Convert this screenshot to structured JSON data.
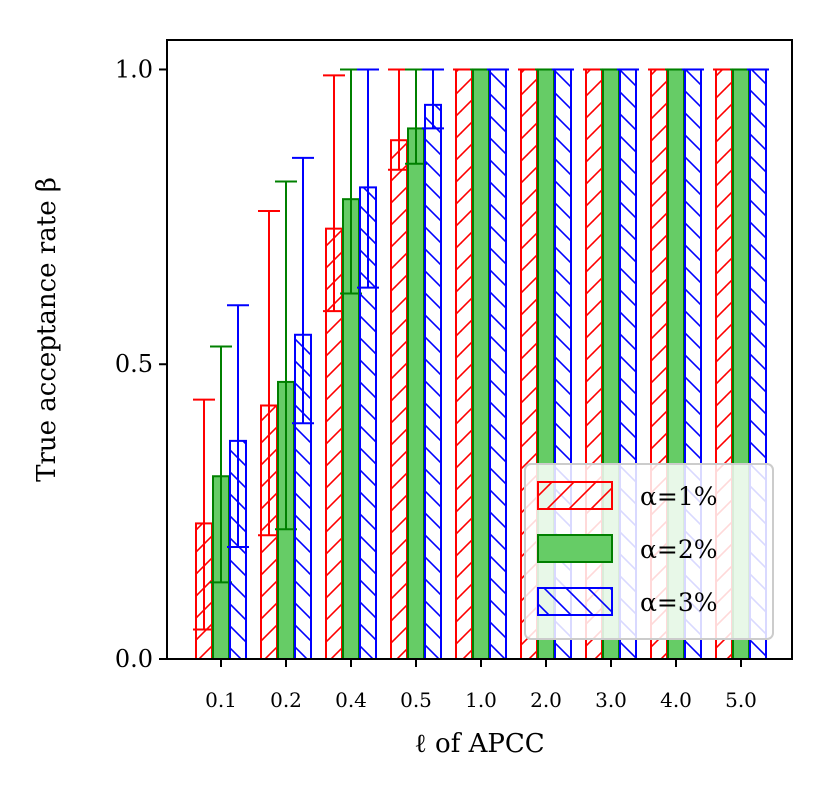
{
  "chart_data": {
    "type": "bar",
    "title": "",
    "xlabel": "ℓ of APCC",
    "ylabel": "True acceptance rate β",
    "ylim": [
      0,
      1.05
    ],
    "yticks": [
      {
        "value": 0.0,
        "label": "0.0"
      },
      {
        "value": 0.5,
        "label": "0.5"
      },
      {
        "value": 1.0,
        "label": "1.0"
      }
    ],
    "categories": [
      "0.1",
      "0.2",
      "0.4",
      "0.5",
      "1.0",
      "2.0",
      "3.0",
      "4.0",
      "5.0"
    ],
    "series": [
      {
        "name": "α=1%",
        "color": "#ff0000",
        "style": "hatch-forward",
        "values": [
          0.23,
          0.43,
          0.73,
          0.88,
          1.0,
          1.0,
          1.0,
          1.0,
          1.0
        ],
        "err_low": [
          0.05,
          0.21,
          0.59,
          0.83,
          1.0,
          1.0,
          1.0,
          1.0,
          1.0
        ],
        "err_high": [
          0.44,
          0.76,
          0.99,
          1.0,
          1.0,
          1.0,
          1.0,
          1.0,
          1.0
        ]
      },
      {
        "name": "α=2%",
        "color": "#008000",
        "fill": "#66cc66",
        "style": "solid",
        "values": [
          0.31,
          0.47,
          0.78,
          0.9,
          1.0,
          1.0,
          1.0,
          1.0,
          1.0
        ],
        "err_low": [
          0.13,
          0.22,
          0.62,
          0.84,
          1.0,
          1.0,
          1.0,
          1.0,
          1.0
        ],
        "err_high": [
          0.53,
          0.81,
          1.0,
          1.0,
          1.0,
          1.0,
          1.0,
          1.0,
          1.0
        ]
      },
      {
        "name": "α=3%",
        "color": "#0000ff",
        "style": "hatch-backward",
        "values": [
          0.37,
          0.55,
          0.8,
          0.94,
          1.0,
          1.0,
          1.0,
          1.0,
          1.0
        ],
        "err_low": [
          0.19,
          0.4,
          0.63,
          0.9,
          1.0,
          1.0,
          1.0,
          1.0,
          1.0
        ],
        "err_high": [
          0.6,
          0.85,
          1.0,
          1.0,
          1.0,
          1.0,
          1.0,
          1.0,
          1.0
        ]
      }
    ],
    "legend": {
      "position": "lower-right"
    }
  }
}
